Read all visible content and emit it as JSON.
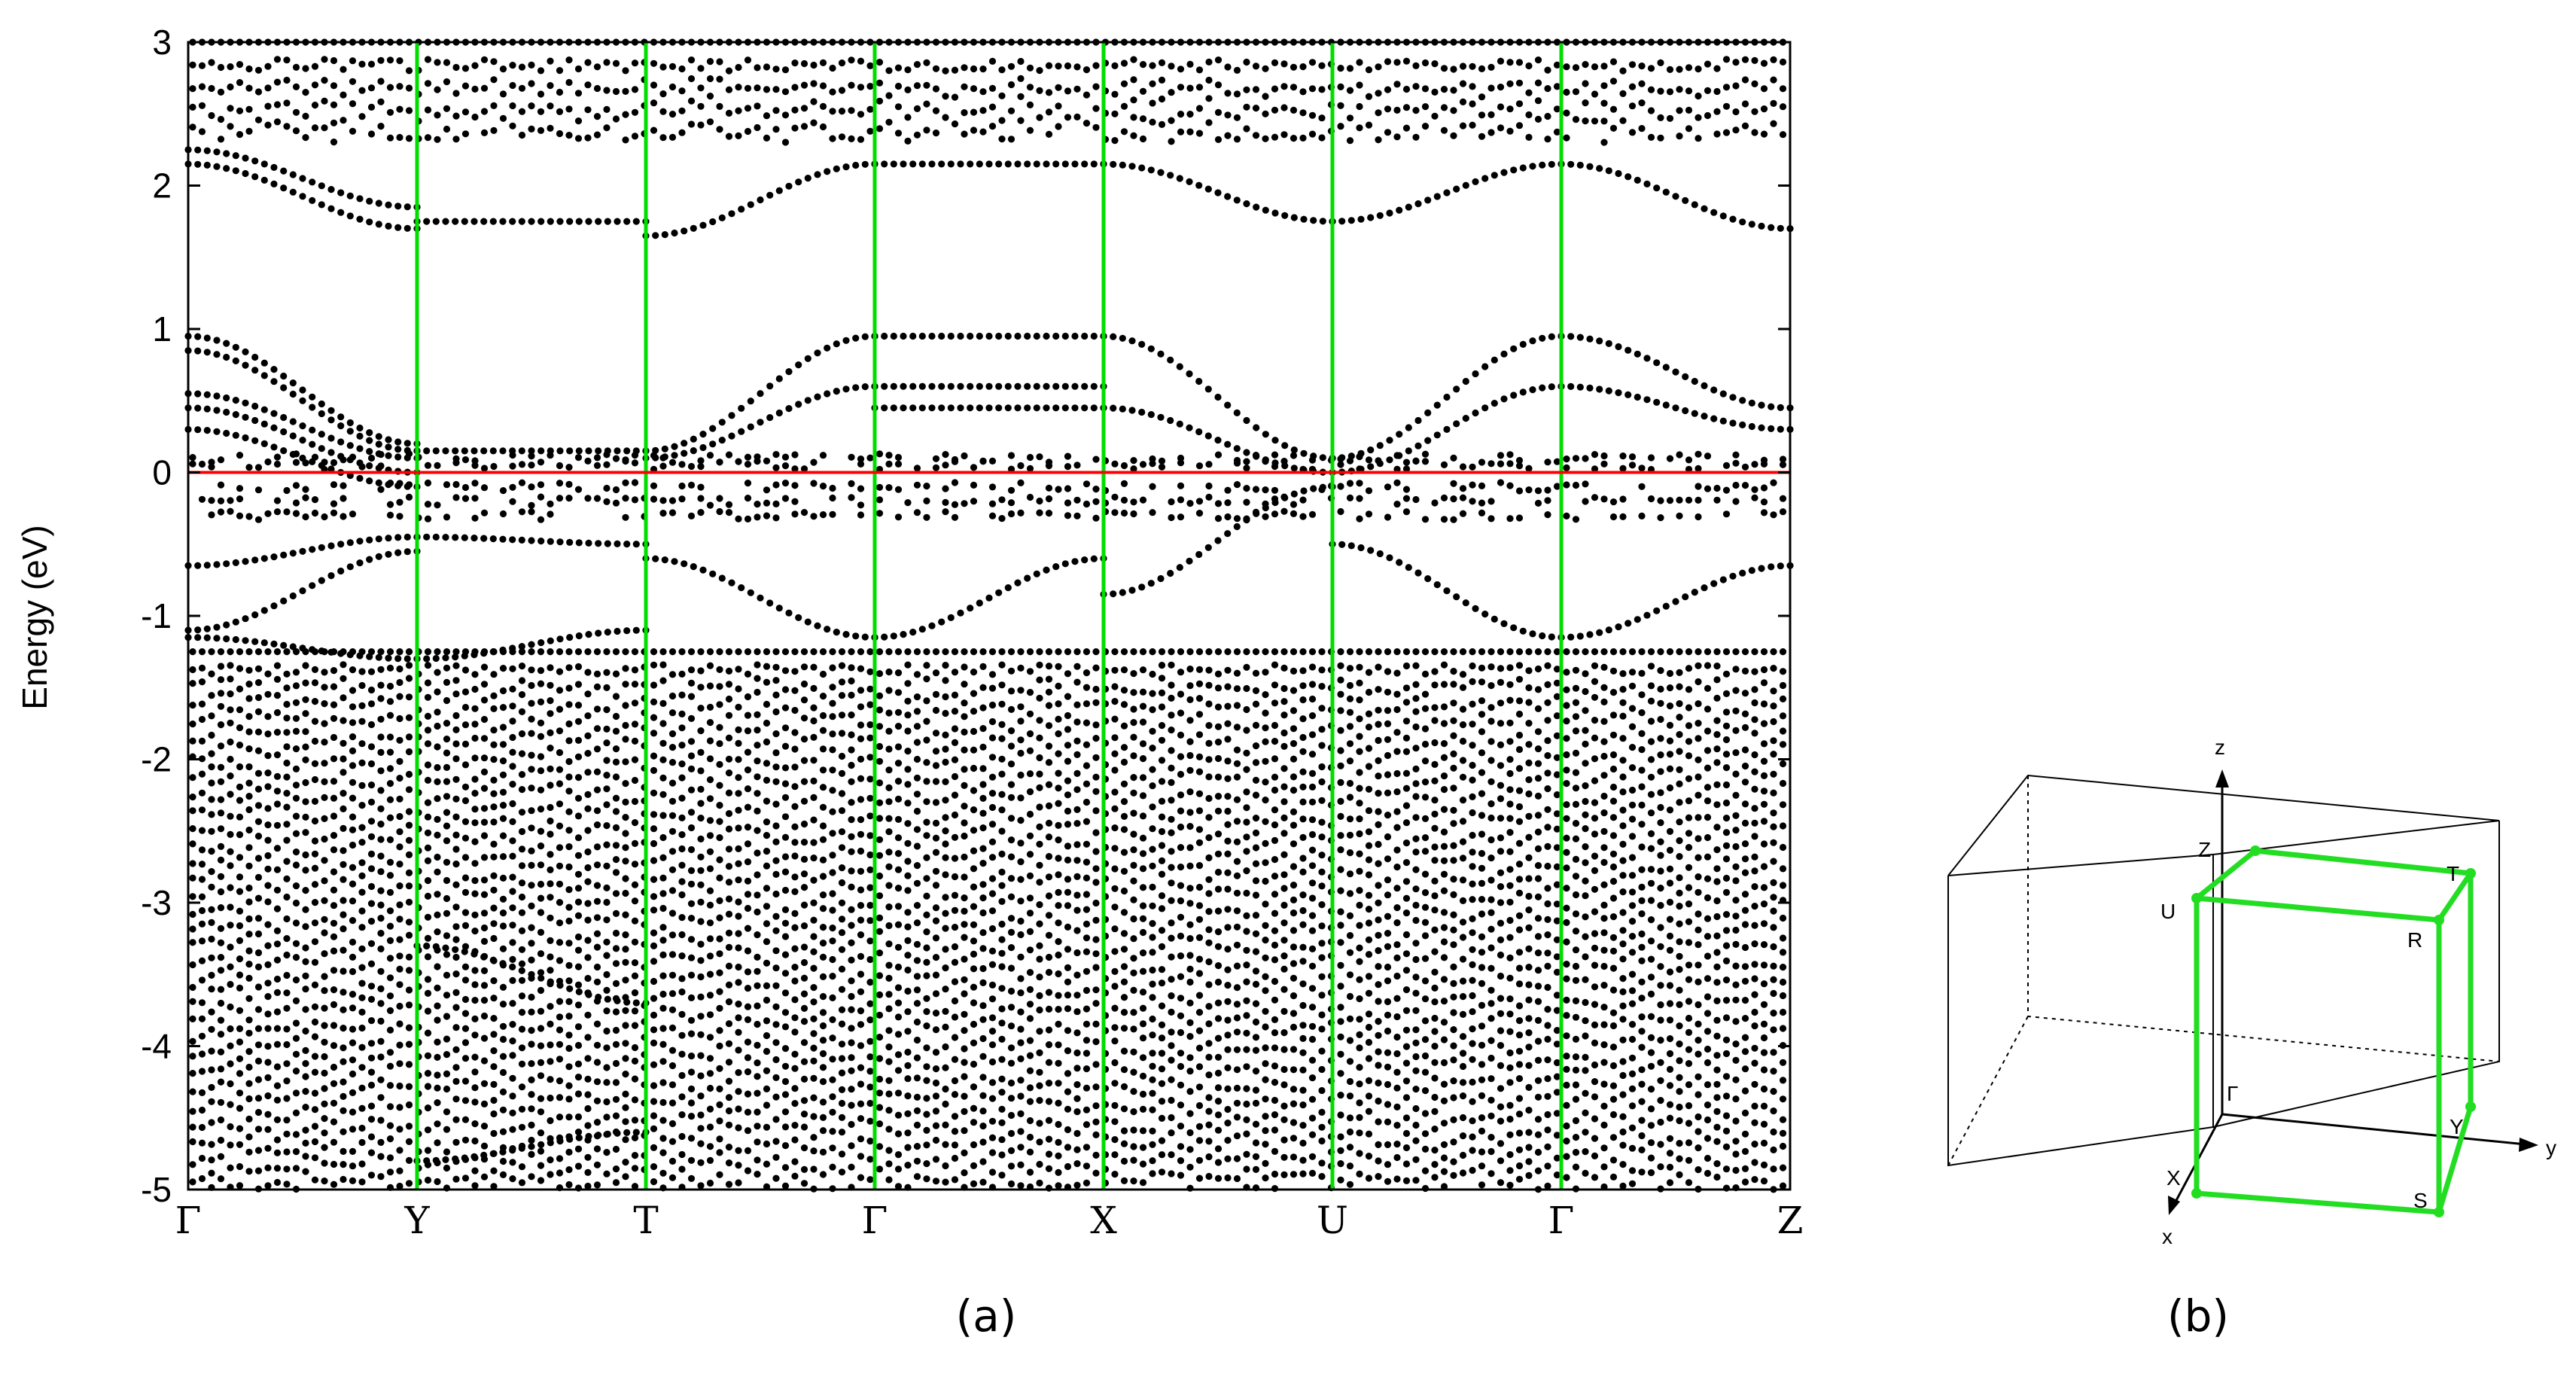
{
  "chart_data": {
    "type": "scatter",
    "title": "",
    "xlabel": "",
    "ylabel": "Energy (eV)",
    "ylim": [
      -5,
      3
    ],
    "yticks": [
      3,
      2,
      1,
      0,
      -1,
      -2,
      -3,
      -4,
      -5
    ],
    "grid": false,
    "fermi_level": 0,
    "kpath": [
      "Γ",
      "Y",
      "T",
      "Γ",
      "X",
      "U",
      "Γ",
      "Z"
    ],
    "colors": {
      "points": "#000000",
      "kpath_lines": "#00dd00",
      "fermi_line": "#ff0000"
    },
    "bands": [
      {
        "segment": "Γ-Y",
        "start": 0.95,
        "end": 0.2
      },
      {
        "segment": "Γ-Y",
        "start": 0.85,
        "end": 0.15
      },
      {
        "segment": "Γ-Y",
        "start": 0.55,
        "end": 0.1
      },
      {
        "segment": "Γ-Y",
        "start": 0.45,
        "end": 0.0
      },
      {
        "segment": "Γ-Y",
        "start": 0.3,
        "end": -0.1
      },
      {
        "segment": "Γ-Y",
        "start": -0.65,
        "end": -0.45
      },
      {
        "segment": "Γ-Y",
        "start": -1.1,
        "end": -0.55
      },
      {
        "segment": "Γ-Y",
        "start": -1.15,
        "end": -1.3
      },
      {
        "segment": "Γ-Y",
        "start": 2.15,
        "end": 1.7
      },
      {
        "segment": "Γ-Y",
        "start": 2.25,
        "end": 1.85
      },
      {
        "segment": "Y-T",
        "start": 1.75,
        "end": 1.75
      },
      {
        "segment": "Y-T",
        "start": 0.15,
        "end": 0.15
      },
      {
        "segment": "Y-T",
        "start": -0.45,
        "end": -0.5
      },
      {
        "segment": "Y-T",
        "start": -1.3,
        "end": -1.1
      },
      {
        "segment": "Y-T",
        "start": -3.3,
        "end": -3.7
      },
      {
        "segment": "Y-T",
        "start": -4.8,
        "end": -4.6
      },
      {
        "segment": "T-Γ",
        "start": 0.15,
        "end": 0.95
      },
      {
        "segment": "T-Γ",
        "start": 0.1,
        "end": 0.6
      },
      {
        "segment": "T-Γ",
        "start": -0.6,
        "end": -1.15
      },
      {
        "segment": "T-Γ",
        "start": 1.65,
        "end": 2.15
      },
      {
        "segment": "Γ-X",
        "start": 0.95,
        "end": 0.95
      },
      {
        "segment": "Γ-X",
        "start": 0.6,
        "end": 0.6
      },
      {
        "segment": "Γ-X",
        "start": 0.45,
        "end": 0.45
      },
      {
        "segment": "Γ-X",
        "start": -1.15,
        "end": -0.6
      },
      {
        "segment": "Γ-X",
        "start": 2.15,
        "end": 2.15
      },
      {
        "segment": "X-U",
        "start": 0.95,
        "end": 0.1
      },
      {
        "segment": "X-U",
        "start": 0.45,
        "end": 0.0
      },
      {
        "segment": "X-U",
        "start": -0.85,
        "end": -0.1
      },
      {
        "segment": "X-U",
        "start": 2.15,
        "end": 1.75
      },
      {
        "segment": "U-Γ",
        "start": 0.1,
        "end": 0.95
      },
      {
        "segment": "U-Γ",
        "start": 0.0,
        "end": 0.6
      },
      {
        "segment": "U-Γ",
        "start": -0.5,
        "end": -1.15
      },
      {
        "segment": "U-Γ",
        "start": 1.75,
        "end": 2.15
      },
      {
        "segment": "Γ-Z",
        "start": 0.95,
        "end": 0.45
      },
      {
        "segment": "Γ-Z",
        "start": 0.6,
        "end": 0.3
      },
      {
        "segment": "Γ-Z",
        "start": -1.15,
        "end": -0.65
      },
      {
        "segment": "Γ-Z",
        "start": 2.15,
        "end": 1.7
      }
    ]
  },
  "brillouin_zone": {
    "labels": [
      "z",
      "y",
      "x",
      "Z",
      "T",
      "U",
      "R",
      "Γ",
      "Y",
      "X",
      "S"
    ]
  },
  "panel_labels": {
    "a": "(a)",
    "b": "(b)"
  }
}
